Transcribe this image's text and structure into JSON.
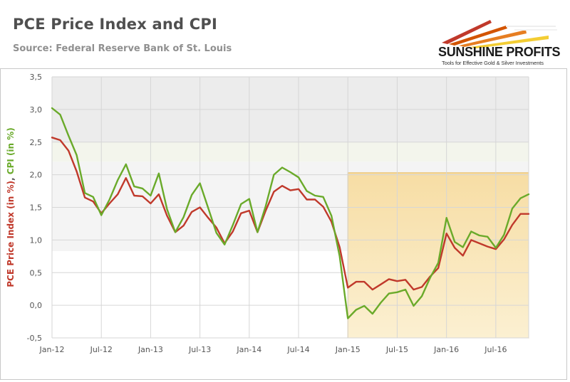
{
  "header": {
    "title": "PCE Price Index and CPI",
    "subtitle": "Source: Federal Reserve Bank of St. Louis"
  },
  "logo": {
    "name": "SUNSHINE PROFITS",
    "tagline": "Tools for Effective Gold & Silver Investments"
  },
  "colors": {
    "pce": "#c0392b",
    "cpi": "#6aaa2a",
    "highlight_fill": "#f7dca0",
    "highlight_stroke": "#e7b95a"
  },
  "chart_data": {
    "type": "line",
    "title": "PCE Price Index and CPI",
    "ylabel_parts": [
      "PCE Price Index (in %)",
      ", ",
      "CPI (in %)"
    ],
    "xlabel": "",
    "ylim": [
      -0.5,
      3.5
    ],
    "y_ticks": [
      "3,5",
      "3,0",
      "2,5",
      "2,0",
      "1,5",
      "1,0",
      "0,5",
      "0,0",
      "-0,5"
    ],
    "y_tick_values": [
      3.5,
      3.0,
      2.5,
      2.0,
      1.5,
      1.0,
      0.5,
      0.0,
      -0.5
    ],
    "x_tick_labels": [
      "Jan-12",
      "Jul-12",
      "Jan-13",
      "Jul-13",
      "Jan-14",
      "Jul-14",
      "Jan-15",
      "Jul-15",
      "Jan-16",
      "Jul-16"
    ],
    "x_tick_indices": [
      0,
      6,
      12,
      18,
      24,
      30,
      36,
      42,
      48,
      54
    ],
    "series": [
      {
        "name": "PCE Price Index (in %)",
        "values": [
          2.57,
          2.53,
          2.37,
          2.05,
          1.65,
          1.59,
          1.41,
          1.56,
          1.7,
          1.95,
          1.68,
          1.67,
          1.56,
          1.7,
          1.37,
          1.12,
          1.22,
          1.43,
          1.5,
          1.34,
          1.19,
          0.95,
          1.13,
          1.41,
          1.45,
          1.12,
          1.45,
          1.74,
          1.83,
          1.76,
          1.78,
          1.62,
          1.62,
          1.51,
          1.28,
          0.89,
          0.27,
          0.36,
          0.36,
          0.24,
          0.32,
          0.4,
          0.37,
          0.39,
          0.24,
          0.28,
          0.44,
          0.57,
          1.1,
          0.88,
          0.76,
          1.0,
          0.95,
          0.9,
          0.86,
          1.01,
          1.23,
          1.4,
          1.4
        ]
      },
      {
        "name": "CPI (in %)",
        "values": [
          3.02,
          2.92,
          2.6,
          2.3,
          1.72,
          1.66,
          1.38,
          1.62,
          1.92,
          2.16,
          1.82,
          1.79,
          1.68,
          2.02,
          1.47,
          1.12,
          1.35,
          1.69,
          1.87,
          1.49,
          1.11,
          0.93,
          1.23,
          1.55,
          1.63,
          1.12,
          1.52,
          2.0,
          2.11,
          2.04,
          1.96,
          1.75,
          1.68,
          1.66,
          1.37,
          0.75,
          -0.2,
          -0.07,
          -0.01,
          -0.13,
          0.04,
          0.18,
          0.2,
          0.24,
          -0.01,
          0.14,
          0.42,
          0.65,
          1.34,
          0.97,
          0.89,
          1.13,
          1.07,
          1.05,
          0.88,
          1.08,
          1.48,
          1.64,
          1.7
        ]
      }
    ],
    "highlight": {
      "x_start_index": 36,
      "x_end_index": 58,
      "y_min": -0.5,
      "y_max": 2.03
    },
    "background_bands": [
      {
        "from": 2.5,
        "to": 3.5,
        "color": "#ececec"
      },
      {
        "from": 2.2,
        "to": 2.5,
        "color": "#f3f5ec"
      },
      {
        "from": 0.83,
        "to": 2.2,
        "color": "#f4f4f4"
      }
    ]
  }
}
